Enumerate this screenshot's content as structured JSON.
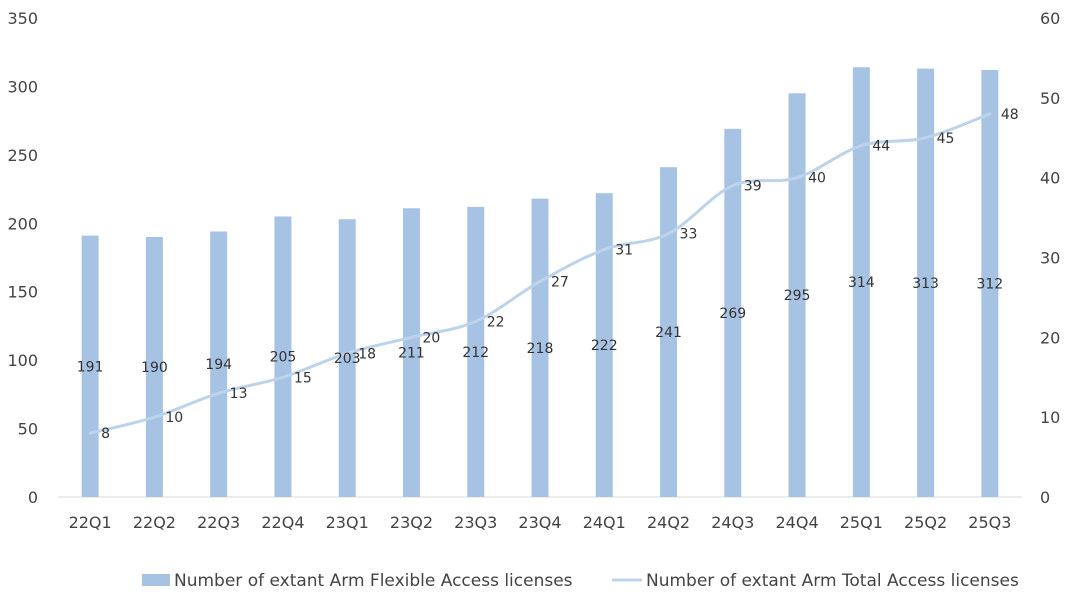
{
  "chart_data": {
    "type": "bar",
    "categories": [
      "22Q1",
      "22Q2",
      "22Q3",
      "22Q4",
      "23Q1",
      "23Q2",
      "23Q3",
      "23Q4",
      "24Q1",
      "24Q2",
      "24Q3",
      "24Q4",
      "25Q1",
      "25Q2",
      "25Q3"
    ],
    "series": [
      {
        "name": "Number of extant Arm Flexible Access licenses",
        "type": "bar",
        "axis": "left",
        "color": "#a7c3e4",
        "values": [
          191,
          190,
          194,
          205,
          203,
          211,
          212,
          218,
          222,
          241,
          269,
          295,
          314,
          313,
          312
        ]
      },
      {
        "name": "Number of extant Arm Total Access licenses",
        "type": "line",
        "axis": "right",
        "color": "#bdd3ea",
        "values": [
          8,
          10,
          13,
          15,
          18,
          20,
          22,
          27,
          31,
          33,
          39,
          40,
          44,
          45,
          48
        ]
      }
    ],
    "y_left": {
      "min": 0,
      "max": 350,
      "ticks": [
        "0",
        "50",
        "100",
        "150",
        "200",
        "250",
        "300",
        "350"
      ]
    },
    "y_right": {
      "min": 0,
      "max": 60,
      "ticks": [
        "0",
        "10",
        "20",
        "30",
        "40",
        "50",
        "60"
      ]
    },
    "grid": false,
    "legend_position": "bottom"
  }
}
